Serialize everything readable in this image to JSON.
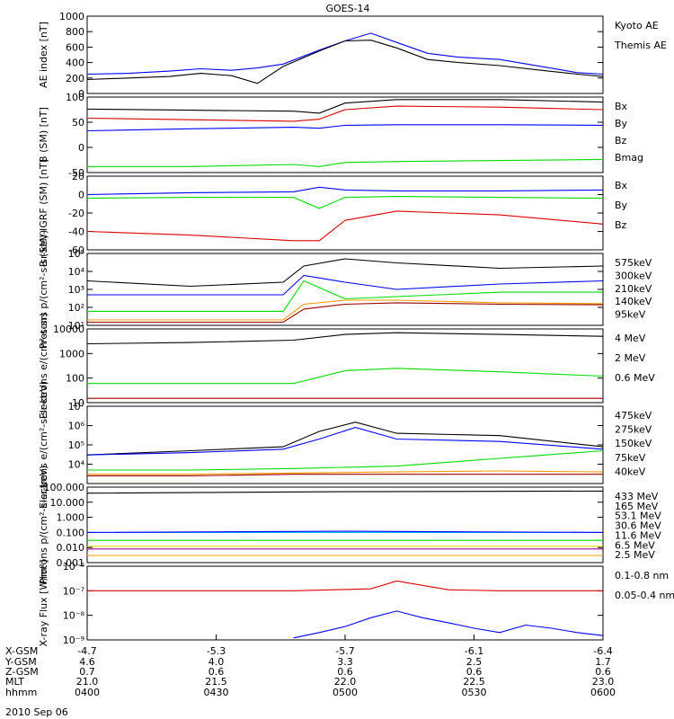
{
  "title": "GOES-14",
  "date_label": "2010 Sep 06",
  "colors": {
    "black": "#000000",
    "blue": "#0000ff",
    "green": "#00dd00",
    "red": "#dd0000",
    "orange": "#ff9900",
    "yellow": "#dddd00",
    "cyan": "#00bbff",
    "purple": "#aa00aa",
    "darkred": "#990000"
  },
  "orbit_table": {
    "row_labels": [
      "X-GSM",
      "Y-GSM",
      "Z-GSM",
      "MLT",
      "hhmm"
    ],
    "columns": [
      [
        "-4.7",
        "4.6",
        "0.7",
        "21.0",
        "0400"
      ],
      [
        "-5.3",
        "4.0",
        "0.6",
        "21.5",
        "0430"
      ],
      [
        "-5.7",
        "3.3",
        "0.6",
        "22.0",
        "0500"
      ],
      [
        "-6.1",
        "2.5",
        "0.6",
        "22.5",
        "0530"
      ],
      [
        "-6.4",
        "1.7",
        "0.6",
        "23.0",
        "0600"
      ]
    ]
  },
  "chart_data": [
    {
      "type": "line",
      "ylabel": "AE index [nT]",
      "ylim": [
        0,
        1000
      ],
      "scale": "linear",
      "yticks": [
        {
          "value": 0,
          "label": "0"
        },
        {
          "value": 200,
          "label": "200"
        },
        {
          "value": 400,
          "label": "400"
        },
        {
          "value": 600,
          "label": "600"
        },
        {
          "value": 800,
          "label": "800"
        },
        {
          "value": 1000,
          "label": "1000"
        }
      ],
      "series": [
        {
          "name": "Kyoto AE",
          "color": "blue",
          "x": [
            0,
            0.08,
            0.16,
            0.22,
            0.28,
            0.33,
            0.38,
            0.45,
            0.5,
            0.55,
            0.6,
            0.66,
            0.72,
            0.8,
            0.88,
            0.95,
            1.0
          ],
          "y": [
            250,
            260,
            290,
            320,
            300,
            330,
            380,
            560,
            680,
            780,
            660,
            520,
            470,
            440,
            350,
            270,
            250
          ]
        },
        {
          "name": "Themis AE",
          "color": "black",
          "x": [
            0,
            0.08,
            0.16,
            0.22,
            0.28,
            0.33,
            0.38,
            0.45,
            0.5,
            0.55,
            0.6,
            0.66,
            0.72,
            0.8,
            0.88,
            0.95,
            1.0
          ],
          "y": [
            180,
            200,
            220,
            260,
            230,
            130,
            350,
            550,
            680,
            690,
            590,
            440,
            400,
            360,
            300,
            250,
            220
          ]
        }
      ]
    },
    {
      "type": "line",
      "ylabel": "B (SM) [nT]",
      "ylim": [
        -50,
        100
      ],
      "scale": "linear",
      "yticks": [
        {
          "value": -50,
          "label": "-50"
        },
        {
          "value": 0,
          "label": "0"
        },
        {
          "value": 50,
          "label": "50"
        },
        {
          "value": 100,
          "label": "100"
        }
      ],
      "series": [
        {
          "name": "Bx",
          "color": "blue",
          "x": [
            0,
            0.2,
            0.4,
            0.45,
            0.5,
            0.6,
            0.8,
            1.0
          ],
          "y": [
            33,
            37,
            40,
            38,
            44,
            45,
            45,
            44
          ]
        },
        {
          "name": "By",
          "color": "green",
          "x": [
            0,
            0.2,
            0.4,
            0.45,
            0.5,
            0.6,
            0.8,
            1.0
          ],
          "y": [
            -38,
            -38,
            -34,
            -38,
            -30,
            -28,
            -26,
            -24
          ]
        },
        {
          "name": "Bz",
          "color": "red",
          "x": [
            0,
            0.2,
            0.4,
            0.45,
            0.5,
            0.6,
            0.8,
            1.0
          ],
          "y": [
            58,
            55,
            52,
            56,
            75,
            82,
            80,
            75
          ]
        },
        {
          "name": "Bmag",
          "color": "black",
          "x": [
            0,
            0.2,
            0.4,
            0.45,
            0.5,
            0.6,
            0.8,
            1.0
          ],
          "y": [
            76,
            74,
            72,
            68,
            88,
            95,
            95,
            90
          ]
        }
      ]
    },
    {
      "type": "line",
      "ylabel": "B (SM)-IGRF (SM) [nT]",
      "ylim": [
        -60,
        20
      ],
      "scale": "linear",
      "yticks": [
        {
          "value": -60,
          "label": "-60"
        },
        {
          "value": -40,
          "label": "-40"
        },
        {
          "value": -20,
          "label": "-20"
        },
        {
          "value": 0,
          "label": "0"
        },
        {
          "value": 20,
          "label": "20"
        }
      ],
      "series": [
        {
          "name": "Bx",
          "color": "blue",
          "x": [
            0,
            0.2,
            0.4,
            0.45,
            0.5,
            0.6,
            0.8,
            1.0
          ],
          "y": [
            0,
            2,
            3,
            8,
            5,
            4,
            4,
            5
          ]
        },
        {
          "name": "By",
          "color": "green",
          "x": [
            0,
            0.2,
            0.4,
            0.45,
            0.5,
            0.6,
            0.8,
            1.0
          ],
          "y": [
            -4,
            -3,
            -3,
            -15,
            -3,
            -2,
            -3,
            -4
          ]
        },
        {
          "name": "Bz",
          "color": "red",
          "x": [
            0,
            0.2,
            0.4,
            0.45,
            0.5,
            0.6,
            0.8,
            1.0
          ],
          "y": [
            -40,
            -44,
            -50,
            -50,
            -28,
            -18,
            -22,
            -32
          ]
        }
      ]
    },
    {
      "type": "line",
      "ylabel": "Protons p/(cm²-s-sr-keV)",
      "ylim": [
        10,
        100000
      ],
      "scale": "log",
      "yticks": [
        {
          "value": 10,
          "label": "10¹"
        },
        {
          "value": 100,
          "label": "10²"
        },
        {
          "value": 1000,
          "label": "10³"
        },
        {
          "value": 10000,
          "label": "10⁴"
        },
        {
          "value": 100000,
          "label": "10⁵"
        }
      ],
      "series": [
        {
          "name": "575keV",
          "color": "black",
          "x": [
            0,
            0.2,
            0.38,
            0.42,
            0.5,
            0.6,
            0.8,
            1.0
          ],
          "y": [
            3000,
            1500,
            2500,
            20000,
            50000,
            30000,
            15000,
            20000
          ]
        },
        {
          "name": "300keV",
          "color": "orange",
          "x": [
            0,
            0.2,
            0.38,
            0.42,
            0.5,
            0.6,
            0.8,
            1.0
          ],
          "y": [
            20,
            20,
            20,
            150,
            250,
            250,
            180,
            160
          ]
        },
        {
          "name": "210keV",
          "color": "green",
          "x": [
            0,
            0.2,
            0.38,
            0.42,
            0.5,
            0.6,
            0.8,
            1.0
          ],
          "y": [
            60,
            60,
            60,
            3000,
            300,
            400,
            700,
            700
          ]
        },
        {
          "name": "140keV",
          "color": "blue",
          "x": [
            0,
            0.2,
            0.38,
            0.42,
            0.5,
            0.6,
            0.8,
            1.0
          ],
          "y": [
            500,
            500,
            500,
            6000,
            2500,
            1000,
            2000,
            3000
          ]
        },
        {
          "name": "95keV",
          "color": "darkred",
          "x": [
            0,
            0.2,
            0.38,
            0.42,
            0.5,
            0.6,
            0.8,
            1.0
          ],
          "y": [
            15,
            15,
            15,
            80,
            150,
            180,
            150,
            140
          ]
        }
      ]
    },
    {
      "type": "line",
      "ylabel": "Electrons e/(cm²-s-sr)",
      "ylim": [
        10,
        10000
      ],
      "scale": "log",
      "yticks": [
        {
          "value": 10,
          "label": "10"
        },
        {
          "value": 100,
          "label": "100"
        },
        {
          "value": 1000,
          "label": "1000"
        },
        {
          "value": 10000,
          "label": "10000"
        }
      ],
      "series": [
        {
          "name": "4 MeV",
          "color": "darkred",
          "x": [
            0,
            0.2,
            0.4,
            0.6,
            0.8,
            1.0
          ],
          "y": [
            15,
            15,
            15,
            15,
            15,
            15
          ]
        },
        {
          "name": "2 MeV",
          "color": "green",
          "x": [
            0,
            0.2,
            0.4,
            0.5,
            0.6,
            0.8,
            1.0
          ],
          "y": [
            60,
            60,
            60,
            200,
            250,
            180,
            120
          ]
        },
        {
          "name": "0.6 MeV",
          "color": "black",
          "x": [
            0,
            0.2,
            0.4,
            0.5,
            0.6,
            0.8,
            1.0
          ],
          "y": [
            2500,
            2800,
            3500,
            6000,
            7000,
            6000,
            5000
          ]
        }
      ]
    },
    {
      "type": "line",
      "ylabel": "Electrons e/(cm²-s-sr-keV)",
      "ylim": [
        1000,
        10000000
      ],
      "scale": "log",
      "yticks": [
        {
          "value": 10000,
          "label": "10⁴"
        },
        {
          "value": 100000,
          "label": "10⁵"
        },
        {
          "value": 1000000,
          "label": "10⁶"
        },
        {
          "value": 10000000,
          "label": "10⁷"
        }
      ],
      "series": [
        {
          "name": "475keV",
          "color": "black",
          "x": [
            0,
            0.2,
            0.38,
            0.45,
            0.52,
            0.6,
            0.8,
            1.0
          ],
          "y": [
            30000,
            50000,
            80000,
            500000,
            1500000,
            400000,
            300000,
            80000
          ]
        },
        {
          "name": "275keV",
          "color": "orange",
          "x": [
            0,
            0.2,
            0.4,
            0.6,
            0.8,
            1.0
          ],
          "y": [
            3000,
            3000,
            3500,
            4000,
            4500,
            4000
          ]
        },
        {
          "name": "150keV",
          "color": "green",
          "x": [
            0,
            0.2,
            0.4,
            0.6,
            0.8,
            1.0
          ],
          "y": [
            5000,
            5000,
            6000,
            8000,
            20000,
            50000
          ]
        },
        {
          "name": "75keV",
          "color": "blue",
          "x": [
            0,
            0.2,
            0.38,
            0.45,
            0.52,
            0.6,
            0.8,
            1.0
          ],
          "y": [
            30000,
            40000,
            60000,
            200000,
            800000,
            200000,
            150000,
            60000
          ]
        },
        {
          "name": "40keV",
          "color": "darkred",
          "x": [
            0,
            0.2,
            0.4,
            0.6,
            0.8,
            1.0
          ],
          "y": [
            2500,
            2500,
            3000,
            3000,
            3000,
            3000
          ]
        }
      ]
    },
    {
      "type": "line",
      "ylabel": "Protons p/(cm²-s-sr-keV)",
      "ylim": [
        0.001,
        100
      ],
      "scale": "log",
      "yticks": [
        {
          "value": 0.001,
          "label": "0.001"
        },
        {
          "value": 0.01,
          "label": "0.010"
        },
        {
          "value": 0.1,
          "label": "0.100"
        },
        {
          "value": 1,
          "label": "1.000"
        },
        {
          "value": 10,
          "label": "10.000"
        },
        {
          "value": 100,
          "label": "100.000"
        }
      ],
      "series": [
        {
          "name": "433 MeV",
          "color": "black",
          "x": [
            0,
            0.5,
            1.0
          ],
          "y": [
            40,
            50,
            55
          ]
        },
        {
          "name": "165 MeV",
          "color": "orange",
          "x": [
            0,
            0.5,
            1.0
          ],
          "y": [
            0.003,
            0.003,
            0.003
          ]
        },
        {
          "name": "53.1 MeV",
          "color": "yellow",
          "x": [
            0,
            0.5,
            1.0
          ],
          "y": [
            0.012,
            0.012,
            0.012
          ]
        },
        {
          "name": "30.6 MeV",
          "color": "green",
          "x": [
            0,
            0.5,
            1.0
          ],
          "y": [
            0.03,
            0.03,
            0.03
          ]
        },
        {
          "name": "11.6 MeV",
          "color": "cyan",
          "x": [
            0,
            0.5,
            1.0
          ],
          "y": [
            0.1,
            0.1,
            0.1
          ]
        },
        {
          "name": "6.5 MeV",
          "color": "purple",
          "x": [
            0,
            0.5,
            1.0
          ],
          "y": [
            0.008,
            0.008,
            0.008
          ]
        },
        {
          "name": "2.5 MeV",
          "color": "blue",
          "x": [
            0,
            0.5,
            1.0
          ],
          "y": [
            0.1,
            0.12,
            0.1
          ]
        }
      ]
    },
    {
      "type": "line",
      "ylabel": "X-ray Flux [W/m²]",
      "ylim": [
        1e-09,
        1e-06
      ],
      "scale": "log",
      "yticks": [
        {
          "value": 1e-09,
          "label": "10⁻⁹"
        },
        {
          "value": 1e-08,
          "label": "10⁻⁸"
        },
        {
          "value": 1e-07,
          "label": "10⁻⁷"
        },
        {
          "value": 1e-06,
          "label": "10⁻⁶"
        }
      ],
      "series": [
        {
          "name": "0.1-0.8 nm",
          "color": "red",
          "x": [
            0,
            0.2,
            0.4,
            0.55,
            0.6,
            0.7,
            0.8,
            1.0
          ],
          "y": [
            1e-07,
            1e-07,
            1e-07,
            1.2e-07,
            2.5e-07,
            1.1e-07,
            1e-07,
            1e-07
          ]
        },
        {
          "name": "0.05-0.4 nm",
          "color": "blue",
          "x": [
            0.4,
            0.45,
            0.5,
            0.55,
            0.6,
            0.65,
            0.7,
            0.75,
            0.8,
            0.85,
            0.9,
            0.95,
            1.0
          ],
          "y": [
            1.2e-09,
            2e-09,
            3.5e-09,
            8e-09,
            1.5e-08,
            8e-09,
            5e-09,
            3e-09,
            2e-09,
            4e-09,
            3e-09,
            2e-09,
            1.5e-09
          ]
        }
      ]
    }
  ]
}
